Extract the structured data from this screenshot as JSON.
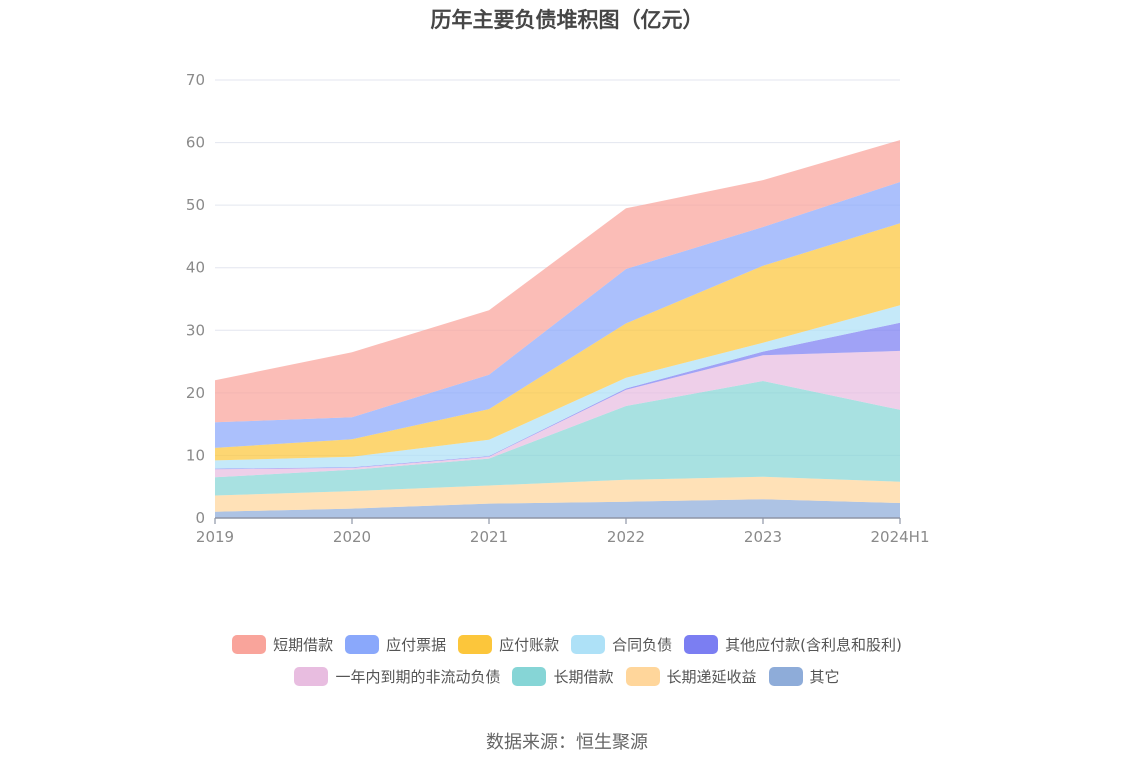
{
  "title": "历年主要负债堆积图（亿元）",
  "source": "数据来源：恒生聚源",
  "chart_data": {
    "type": "area",
    "stacked": true,
    "title": "历年主要负债堆积图（亿元）",
    "x": [
      "2019",
      "2020",
      "2021",
      "2022",
      "2023",
      "2024H1"
    ],
    "ylim": [
      0,
      70
    ],
    "yticks": [
      0,
      10,
      20,
      30,
      40,
      50,
      60,
      70
    ],
    "grid": true,
    "legend_position": "bottom",
    "series": [
      {
        "name": "其它",
        "color": "#8eacd9",
        "values": [
          1.0,
          1.5,
          2.3,
          2.6,
          3.0,
          2.4
        ]
      },
      {
        "name": "长期递延收益",
        "color": "#ffd69b",
        "values": [
          2.6,
          2.8,
          2.9,
          3.5,
          3.6,
          3.4
        ]
      },
      {
        "name": "长期借款",
        "color": "#86d5d6",
        "values": [
          2.9,
          3.4,
          4.3,
          11.8,
          15.3,
          11.5
        ]
      },
      {
        "name": "一年内到期的非流动负债",
        "color": "#e8bde0",
        "values": [
          1.3,
          0.3,
          0.3,
          2.6,
          4.1,
          9.4
        ]
      },
      {
        "name": "其他应付款(含利息和股利)",
        "color": "#7b7ef2",
        "values": [
          0.1,
          0.1,
          0.1,
          0.2,
          0.6,
          4.5
        ]
      },
      {
        "name": "合同负债",
        "color": "#aee1f7",
        "values": [
          1.3,
          1.7,
          2.6,
          1.7,
          1.4,
          2.8
        ]
      },
      {
        "name": "应付账款",
        "color": "#fcc63b",
        "values": [
          2.0,
          2.8,
          4.9,
          8.7,
          12.3,
          13.1
        ]
      },
      {
        "name": "应付票据",
        "color": "#8aa8fb",
        "values": [
          4.1,
          3.5,
          5.5,
          8.7,
          6.2,
          6.6
        ]
      },
      {
        "name": "短期借款",
        "color": "#f9a49b",
        "values": [
          6.7,
          10.4,
          10.3,
          9.7,
          7.5,
          6.7
        ]
      }
    ],
    "legend_order": [
      "短期借款",
      "应付票据",
      "应付账款",
      "合同负债",
      "其他应付款(含利息和股利)",
      "一年内到期的非流动负债",
      "长期借款",
      "长期递延收益",
      "其它"
    ]
  }
}
